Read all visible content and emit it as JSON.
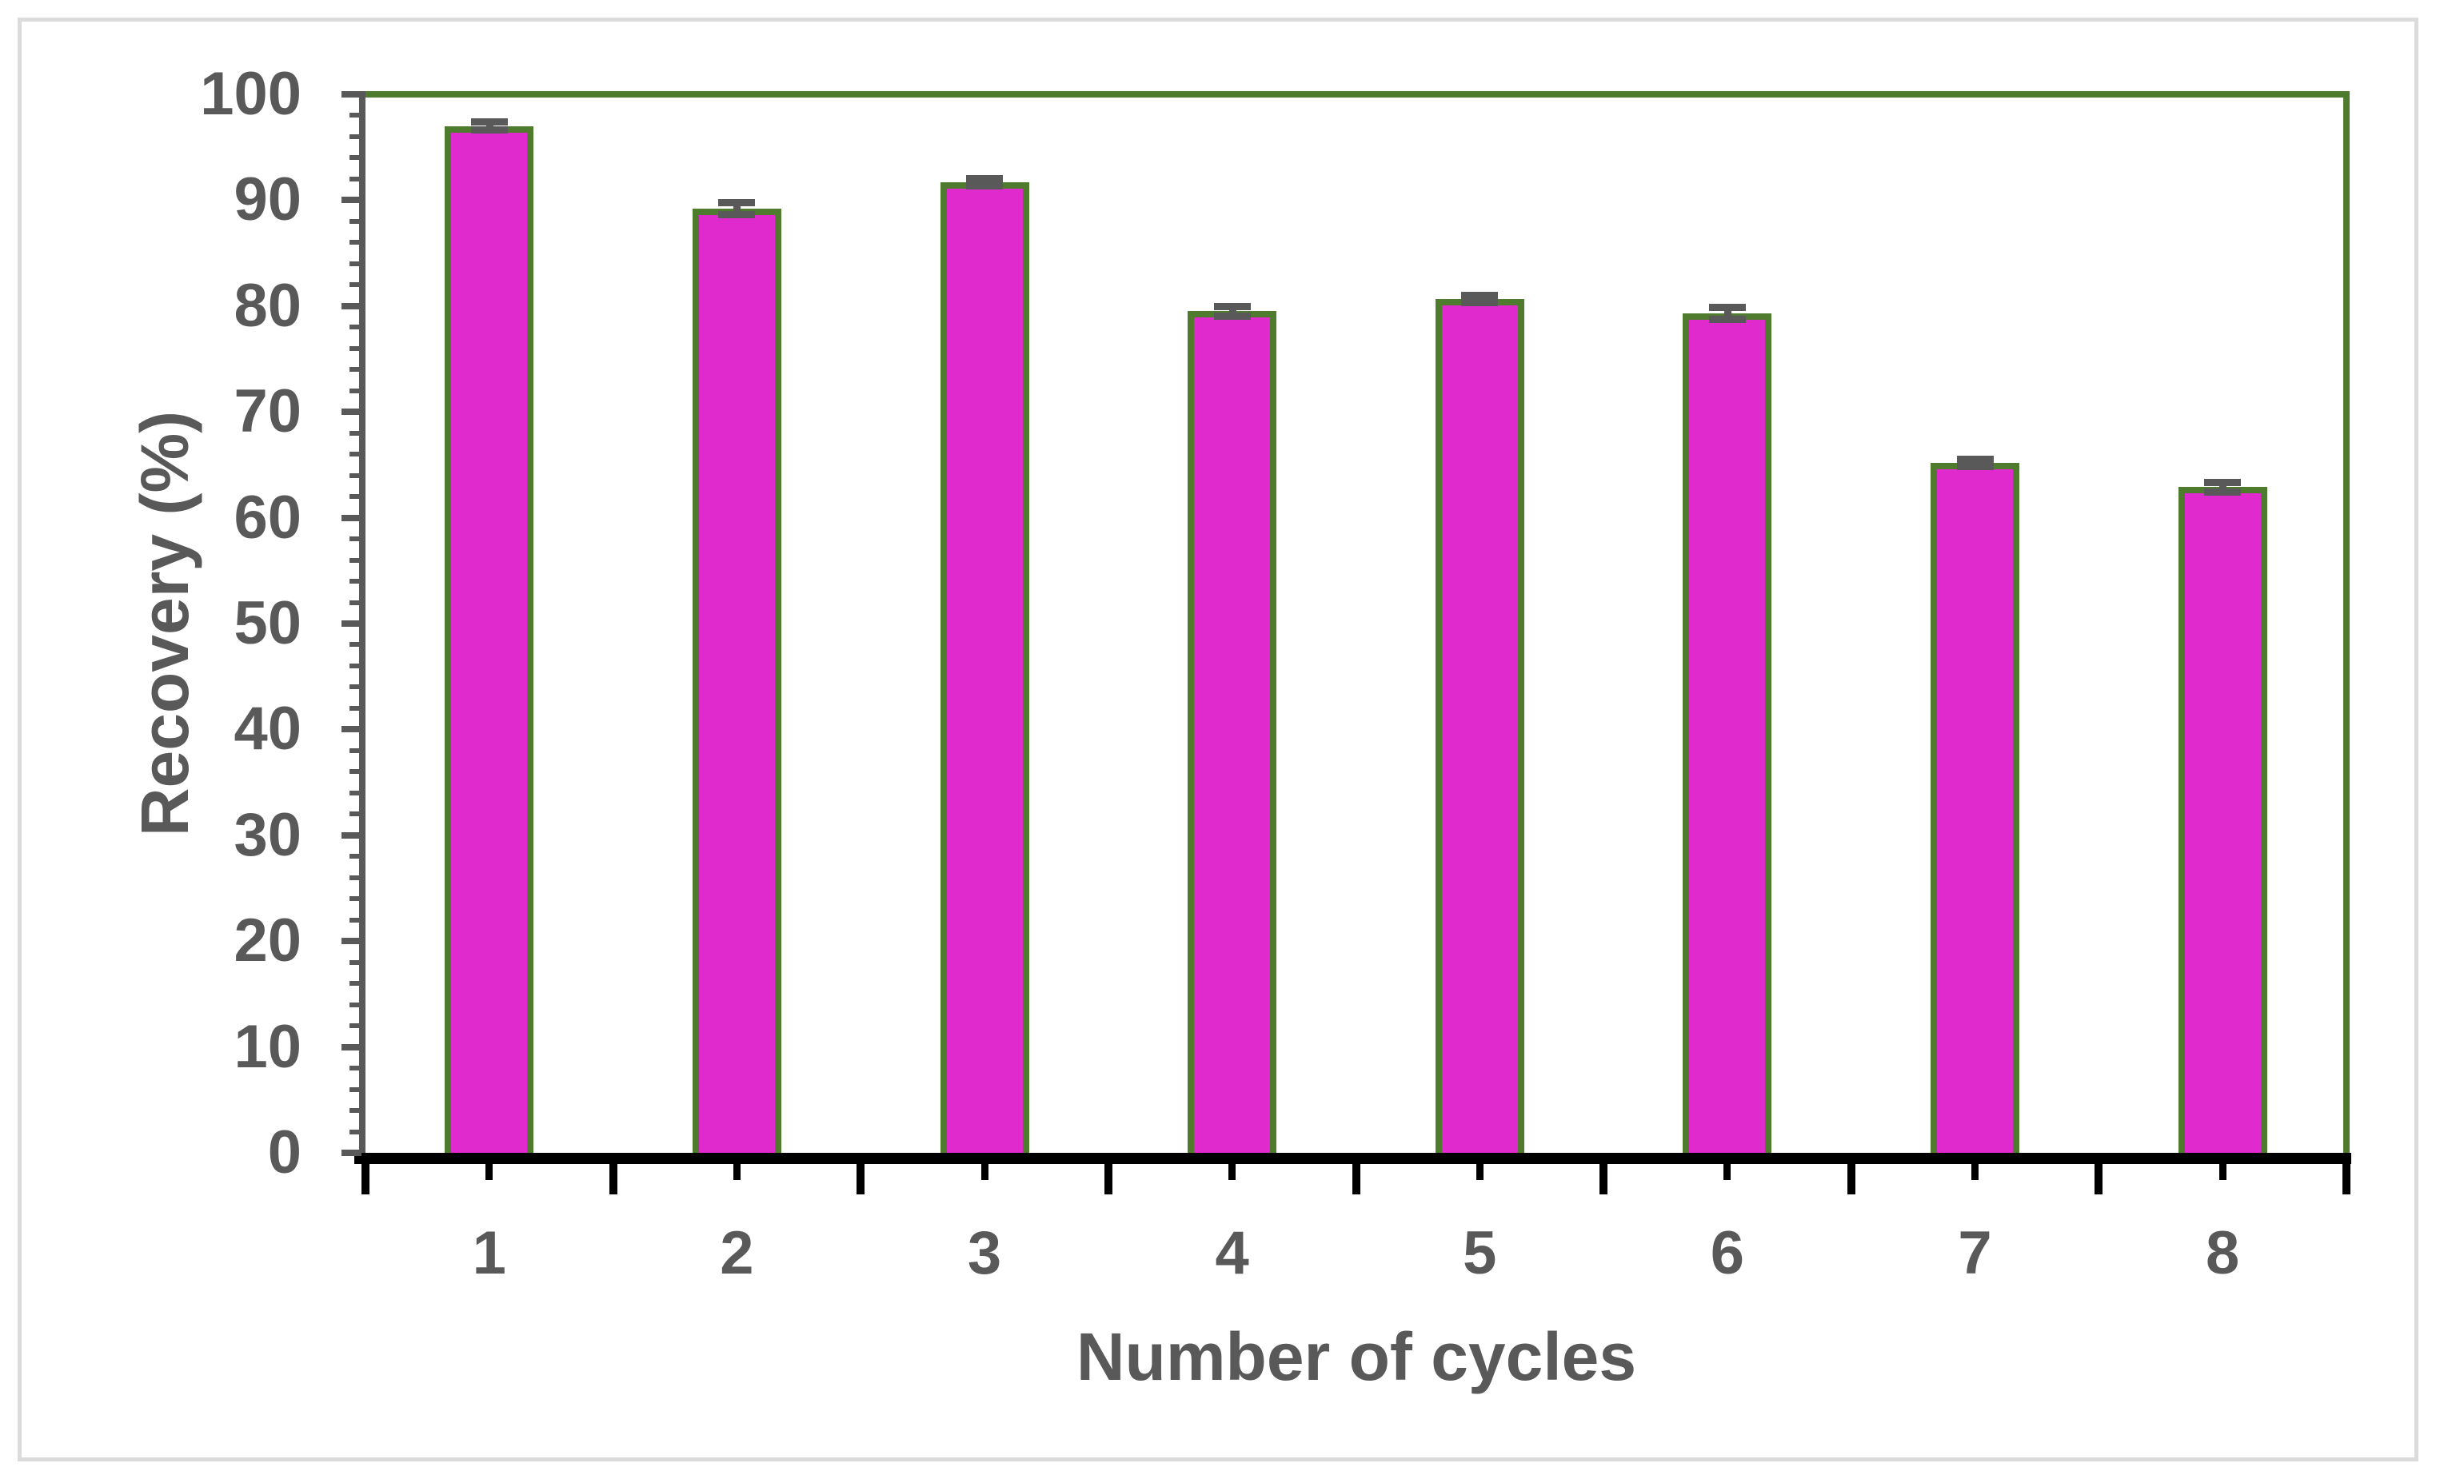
{
  "figure": {
    "background": "#FFFFFF",
    "border_color": "#DBDBDB"
  },
  "chart_data": {
    "type": "bar",
    "title": "",
    "xlabel": "Number of cycles",
    "ylabel": "Recovery (%)",
    "categories": [
      "1",
      "2",
      "3",
      "4",
      "5",
      "6",
      "7",
      "8"
    ],
    "values": [
      97,
      89.2,
      91.7,
      79.5,
      80.7,
      79.3,
      65.2,
      62.9
    ],
    "error_bars": [
      0.7,
      0.9,
      0.6,
      0.8,
      0.6,
      0.9,
      0.6,
      0.8
    ],
    "ylim": [
      0,
      100
    ],
    "y_major_step": 10,
    "y_minor_step": 2,
    "y_tick_labels": [
      "0",
      "10",
      "20",
      "30",
      "40",
      "50",
      "60",
      "70",
      "80",
      "90",
      "100"
    ],
    "grid": "off",
    "legend": "none",
    "bar_width_fraction": 0.36,
    "colors": {
      "bar_fill": "#E02ACD",
      "bar_border": "#4E7B2D",
      "plot_border": "#4E7B2D",
      "y_axis": "#595959",
      "x_axis": "#000000",
      "tick_label": "#595959",
      "axis_title": "#595959",
      "error_bar": "#595959"
    }
  }
}
